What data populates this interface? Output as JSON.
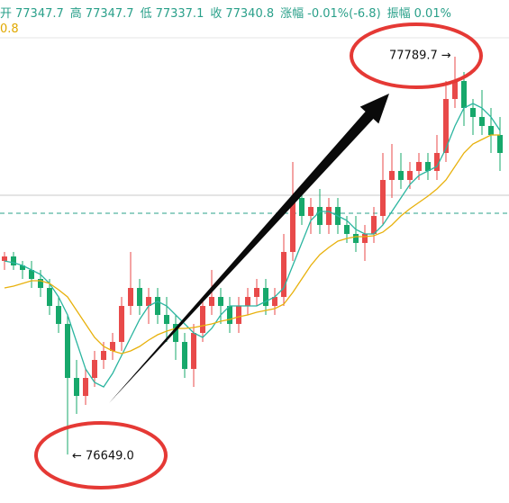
{
  "chart_data": {
    "type": "candlestick",
    "header": [
      {
        "label": "开",
        "value": 77347.7
      },
      {
        "label": "高",
        "value": 77347.7
      },
      {
        "label": "低",
        "value": 77337.1
      },
      {
        "label": "收",
        "value": 77340.8
      },
      {
        "label": "涨幅",
        "value": "-0.01%(-6.8)"
      },
      {
        "label": "振幅",
        "value": "0.01%"
      }
    ],
    "header2": "0.8",
    "high_label": "77789.7 →",
    "low_label": "← 76649.0",
    "ylim": [
      76510,
      77952.2
    ],
    "up_color": "#e84a4a",
    "down_color": "#17a86b",
    "open": [
      77204.0,
      77216.9,
      77191.1,
      77178.2,
      77152.4,
      77126.6,
      77075.0,
      77023.4,
      76868.6,
      76817.0,
      76868.6,
      76920.2,
      76946.0,
      76971.8,
      77075.0,
      77126.6,
      77075.0,
      77100.8,
      77049.2,
      77023.4,
      76971.8,
      76894.4,
      76997.6,
      77075.0,
      77100.8,
      77075.0,
      77023.4,
      77075.0,
      77100.8,
      77126.6,
      77075.0,
      77100.8,
      77229.8,
      77384.6,
      77333.0,
      77358.8,
      77307.2,
      77358.8,
      77307.2,
      77281.4,
      77255.6,
      77281.4,
      77333.0,
      77436.2,
      77462.0,
      77436.2,
      77462.0,
      77487.8,
      77462.0,
      77513.6,
      77668.4,
      77720.0,
      77642.6,
      77616.8,
      77591.0,
      77565.2
    ],
    "high": [
      77229.8,
      77229.8,
      77204.0,
      77204.0,
      77178.2,
      77152.4,
      77100.8,
      77049.2,
      76920.2,
      76894.4,
      76946.0,
      76971.8,
      76997.6,
      77100.8,
      77229.8,
      77152.4,
      77126.6,
      77126.6,
      77100.8,
      77049.2,
      76997.6,
      77023.4,
      77100.8,
      77178.2,
      77126.6,
      77100.8,
      77100.8,
      77126.6,
      77152.4,
      77152.4,
      77126.6,
      77281.4,
      77487.8,
      77410.4,
      77384.6,
      77410.4,
      77384.6,
      77384.6,
      77333.0,
      77333.0,
      77307.2,
      77358.8,
      77513.6,
      77539.4,
      77513.6,
      77487.8,
      77513.6,
      77513.6,
      77565.2,
      77720.0,
      77789.7,
      77745.8,
      77668.4,
      77694.2,
      77642.6,
      77616.8
    ],
    "low": [
      77178.2,
      77178.2,
      77152.4,
      77126.6,
      77100.8,
      77049.2,
      76997.6,
      76649.0,
      76765.4,
      76791.2,
      76842.8,
      76894.4,
      76920.2,
      76946.0,
      77049.2,
      77049.2,
      77023.4,
      77023.4,
      76971.8,
      76920.2,
      76868.6,
      76842.8,
      76971.8,
      77049.2,
      77023.4,
      76997.6,
      76997.6,
      77049.2,
      77075.0,
      77049.2,
      77049.2,
      77075.0,
      77204.0,
      77307.2,
      77281.4,
      77281.4,
      77281.4,
      77281.4,
      77255.6,
      77229.8,
      77204.0,
      77255.6,
      77307.2,
      77384.6,
      77410.4,
      77410.4,
      77436.2,
      77436.2,
      77436.2,
      77487.8,
      77642.6,
      77591.0,
      77565.2,
      77565.2,
      77513.6,
      77462.0
    ],
    "close": [
      77216.9,
      77191.1,
      77178.2,
      77152.4,
      77126.6,
      77075.0,
      77023.4,
      76868.6,
      76817.0,
      76868.6,
      76920.2,
      76946.0,
      76971.8,
      77075.0,
      77126.6,
      77075.0,
      77100.8,
      77049.2,
      77023.4,
      76971.8,
      76894.4,
      76997.6,
      77075.0,
      77100.8,
      77075.0,
      77023.4,
      77075.0,
      77100.8,
      77126.6,
      77075.0,
      77100.8,
      77229.8,
      77384.6,
      77333.0,
      77358.8,
      77307.2,
      77358.8,
      77307.2,
      77281.4,
      77255.6,
      77281.4,
      77333.0,
      77436.2,
      77462.0,
      77436.2,
      77462.0,
      77487.8,
      77462.0,
      77513.6,
      77668.4,
      77720.0,
      77642.6,
      77616.8,
      77591.0,
      77565.2,
      77513.6
    ],
    "lines": [
      {
        "color": "#2bb5a0",
        "values": [
          77204.0,
          77198.8,
          77191.1,
          77178.2,
          77165.3,
          77139.5,
          77100.8,
          77049.2,
          76971.8,
          76894.4,
          76855.7,
          76842.8,
          76881.5,
          76933.1,
          76984.7,
          77036.3,
          77075.0,
          77087.9,
          77075.0,
          77049.2,
          77023.4,
          76997.6,
          76984.7,
          77010.5,
          77049.2,
          77075.0,
          77075.0,
          77075.0,
          77075.0,
          77087.9,
          77100.8,
          77126.6,
          77191.1,
          77255.6,
          77320.1,
          77345.9,
          77345.9,
          77333.0,
          77320.1,
          77294.3,
          77281.4,
          77281.4,
          77307.2,
          77345.9,
          77384.6,
          77423.3,
          77449.1,
          77462.0,
          77474.9,
          77526.5,
          77591.0,
          77642.6,
          77655.5,
          77642.6,
          77616.8,
          77578.1
        ]
      },
      {
        "color": "#e8b10c",
        "values": [
          77126.6,
          77131.8,
          77139.5,
          77147.2,
          77147.2,
          77139.5,
          77121.4,
          77100.8,
          77062.1,
          77023.4,
          76984.7,
          76958.9,
          76946.0,
          76938.3,
          76946.0,
          76958.9,
          76977.0,
          76992.4,
          77002.8,
          77010.5,
          77010.5,
          77013.1,
          77018.2,
          77023.4,
          77031.1,
          77036.3,
          77044.0,
          77049.2,
          77056.9,
          77062.1,
          77067.3,
          77080.2,
          77113.7,
          77152.4,
          77191.1,
          77222.1,
          77242.7,
          77260.8,
          77268.5,
          77273.7,
          77273.7,
          77276.2,
          77286.6,
          77307.2,
          77333.0,
          77353.6,
          77371.7,
          77389.8,
          77410.4,
          77436.2,
          77474.9,
          77513.6,
          77539.4,
          77552.3,
          77565.2,
          77565.2
        ]
      }
    ]
  }
}
